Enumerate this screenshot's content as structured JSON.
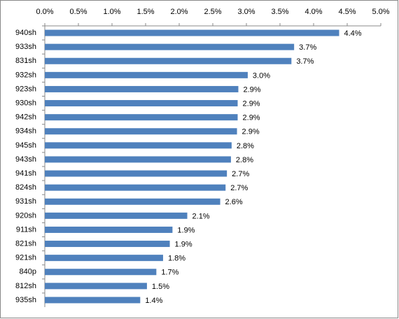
{
  "chart_data": {
    "type": "hbar",
    "categories": [
      "940sh",
      "933sh",
      "831sh",
      "932sh",
      "923sh",
      "930sh",
      "942sh",
      "934sh",
      "945sh",
      "943sh",
      "941sh",
      "824sh",
      "931sh",
      "920sh",
      "911sh",
      "821sh",
      "921sh",
      "840p",
      "812sh",
      "935sh"
    ],
    "values": [
      4.38,
      3.71,
      3.67,
      3.02,
      2.88,
      2.87,
      2.87,
      2.86,
      2.78,
      2.77,
      2.71,
      2.69,
      2.61,
      2.12,
      1.9,
      1.86,
      1.76,
      1.66,
      1.52,
      1.42
    ],
    "value_labels": [
      "4.4%",
      "3.7%",
      "3.7%",
      "3.0%",
      "2.9%",
      "2.9%",
      "2.9%",
      "2.9%",
      "2.8%",
      "2.8%",
      "2.7%",
      "2.7%",
      "2.6%",
      "2.1%",
      "1.9%",
      "1.9%",
      "1.8%",
      "1.7%",
      "1.5%",
      "1.4%"
    ],
    "color": "#4f81bd",
    "xlim": [
      0,
      5
    ],
    "xticks": [
      {
        "value": 0,
        "label": "0.0%"
      },
      {
        "value": 0.5,
        "label": "0.5%"
      },
      {
        "value": 1,
        "label": "1.0%"
      },
      {
        "value": 1.5,
        "label": "1.5%"
      },
      {
        "value": 2,
        "label": "2.0%"
      },
      {
        "value": 2.5,
        "label": "2.5%"
      },
      {
        "value": 3,
        "label": "3.0%"
      },
      {
        "value": 3.5,
        "label": "3.5%"
      },
      {
        "value": 4,
        "label": "4.0%"
      },
      {
        "value": 4.5,
        "label": "4.5%"
      },
      {
        "value": 5,
        "label": "5.0%"
      }
    ],
    "grid": false
  }
}
